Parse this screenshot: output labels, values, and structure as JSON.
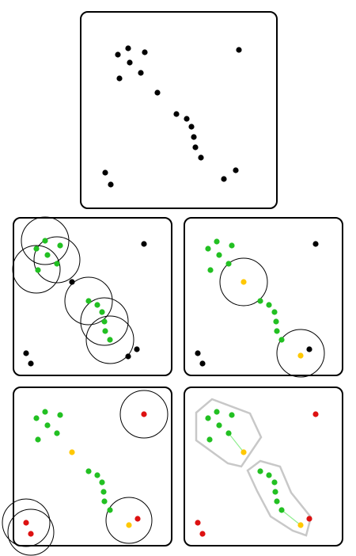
{
  "colors": {
    "background": "#ffffff",
    "frame": "#000000",
    "unvisited": "#000000",
    "core": "#22c022",
    "border": "#ffc800",
    "noise": "#dd1111",
    "hull": "#c8c8c8",
    "link": "#90ee90"
  },
  "panels": [
    {
      "id": "raw-points"
    },
    {
      "id": "core-search"
    },
    {
      "id": "border-expansion"
    },
    {
      "id": "noise-check"
    },
    {
      "id": "final-clusters"
    }
  ]
}
